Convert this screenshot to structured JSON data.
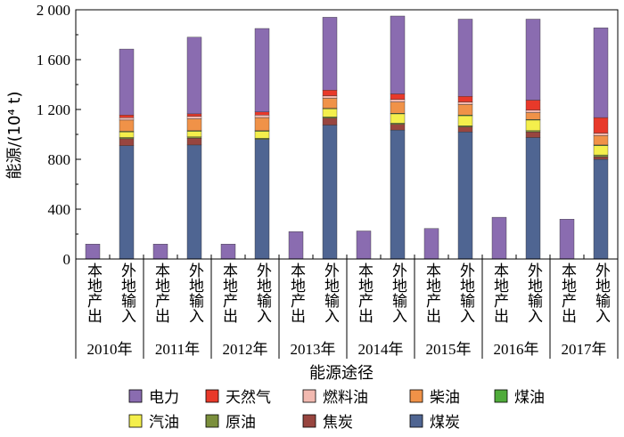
{
  "chart_data": {
    "type": "bar",
    "stacked": true,
    "ylabel": "能源/(10⁴ t)",
    "xlabel": "能源途径",
    "ylim": [
      0,
      2000
    ],
    "yticks": [
      0,
      400,
      800,
      1200,
      1600,
      2000
    ],
    "ytick_labels": [
      "0",
      "400",
      "800",
      "1 200",
      "1 600",
      "2 000"
    ],
    "bar_labels": [
      "本地产出",
      "外地输入"
    ],
    "years": [
      "2010年",
      "2011年",
      "2012年",
      "2013年",
      "2014年",
      "2015年",
      "2016年",
      "2017年"
    ],
    "legend_rows": [
      [
        "电力",
        "天然气",
        "燃料油",
        "柴油",
        "煤油"
      ],
      [
        "汽油",
        "原油",
        "焦炭",
        "煤炭"
      ]
    ],
    "colors": {
      "煤炭": "#4f6592",
      "焦炭": "#98453f",
      "原油": "#7b8f3c",
      "汽油": "#f4ef4c",
      "煤油": "#4fab3a",
      "柴油": "#f09248",
      "燃料油": "#f2b9b0",
      "天然气": "#e8392a",
      "电力": "#8a6cb0"
    },
    "stack_order": [
      "煤炭",
      "焦炭",
      "原油",
      "汽油",
      "煤油",
      "柴油",
      "燃料油",
      "天然气",
      "电力"
    ],
    "series": [
      {
        "name": "煤炭",
        "values": [
          0,
          910,
          0,
          915,
          0,
          960,
          0,
          1075,
          0,
          1035,
          0,
          1020,
          0,
          975,
          0,
          800
        ]
      },
      {
        "name": "焦炭",
        "values": [
          0,
          55,
          0,
          55,
          0,
          0,
          0,
          55,
          0,
          45,
          0,
          40,
          0,
          45,
          0,
          20
        ]
      },
      {
        "name": "原油",
        "values": [
          0,
          10,
          0,
          10,
          0,
          10,
          0,
          10,
          0,
          10,
          0,
          10,
          0,
          10,
          0,
          15
        ]
      },
      {
        "name": "汽油",
        "values": [
          0,
          45,
          0,
          45,
          0,
          55,
          0,
          65,
          0,
          75,
          0,
          80,
          0,
          85,
          0,
          75
        ]
      },
      {
        "name": "煤油",
        "values": [
          0,
          5,
          0,
          5,
          0,
          5,
          0,
          5,
          0,
          5,
          0,
          5,
          0,
          5,
          0,
          5
        ]
      },
      {
        "name": "柴油",
        "values": [
          0,
          90,
          0,
          95,
          0,
          105,
          0,
          80,
          0,
          90,
          0,
          85,
          0,
          55,
          0,
          75
        ]
      },
      {
        "name": "燃料油",
        "values": [
          0,
          20,
          0,
          20,
          0,
          20,
          0,
          20,
          0,
          20,
          0,
          20,
          0,
          20,
          0,
          20
        ]
      },
      {
        "name": "天然气",
        "values": [
          0,
          20,
          0,
          20,
          0,
          25,
          0,
          45,
          0,
          45,
          0,
          45,
          0,
          80,
          0,
          125
        ]
      },
      {
        "name": "电力",
        "values": [
          120,
          530,
          120,
          615,
          120,
          670,
          220,
          585,
          225,
          625,
          245,
          620,
          335,
          650,
          320,
          720
        ]
      }
    ]
  }
}
